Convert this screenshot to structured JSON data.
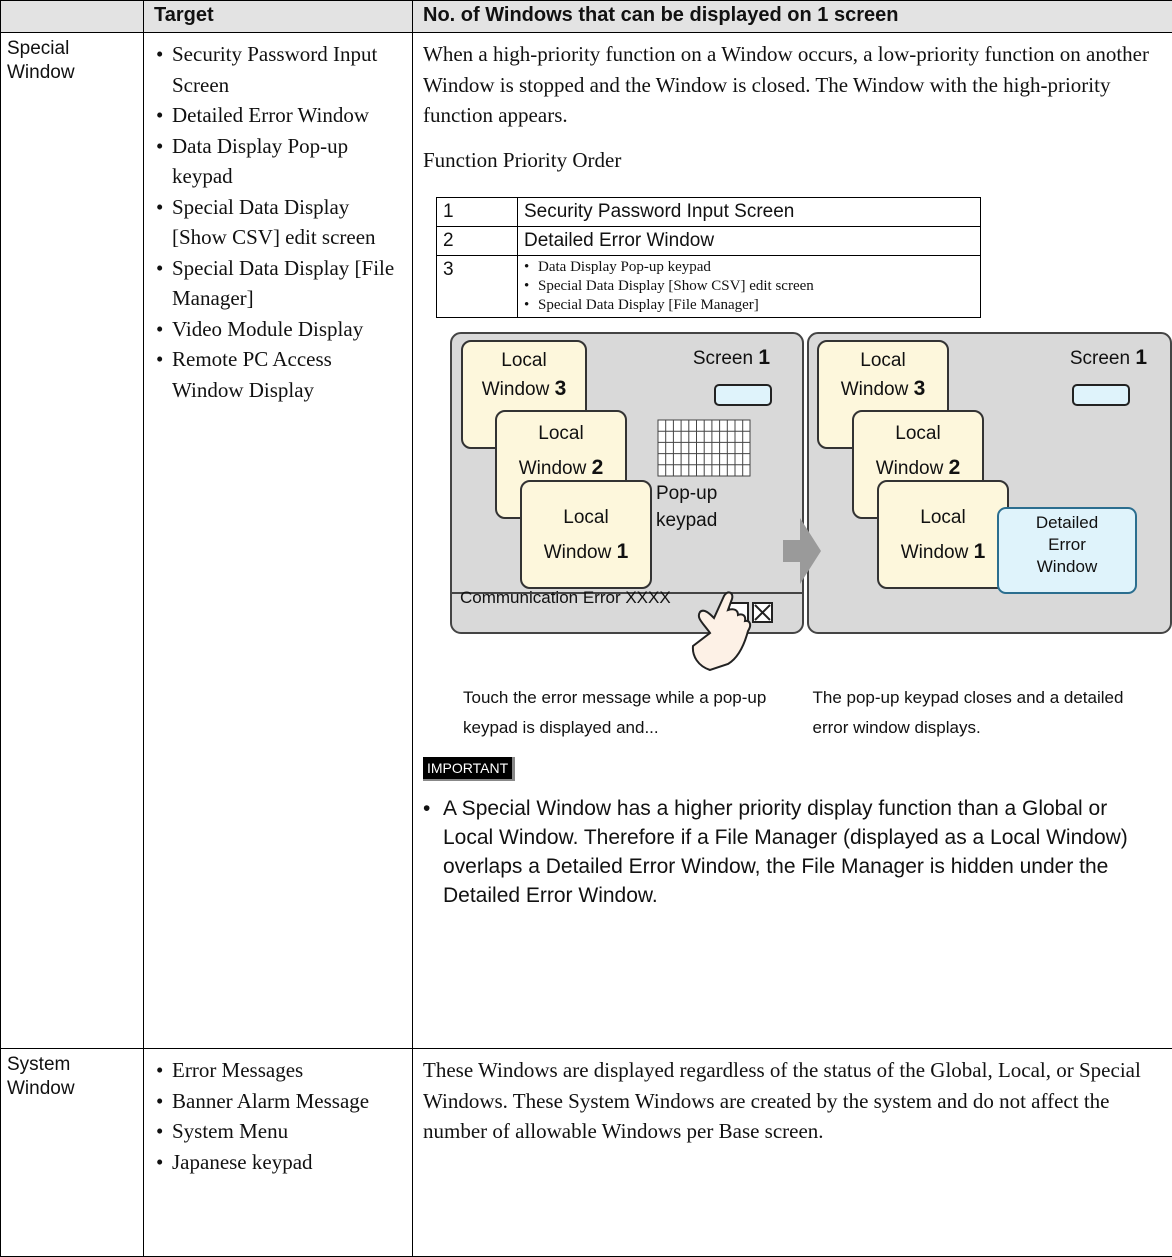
{
  "header": {
    "target": "Target",
    "description": "No. of Windows that can be displayed on 1 screen"
  },
  "rows": [
    {
      "category": "Special Window",
      "targets": [
        "Security Password Input Screen",
        "Detailed Error Window",
        "Data Display Pop-up keypad",
        "Special Data Display [Show CSV] edit screen",
        "Special Data Display [File Manager]",
        "Video Module Display",
        "Remote PC Access Window Display"
      ],
      "paragraphs": [
        "When a high-priority function on a Window occurs, a low-priority function on another Window is stopped and the Window is closed. The Window with the high-priority function appears.",
        "Function Priority Order"
      ],
      "priority_table": [
        {
          "rank": 1,
          "items": [
            "Security Password Input Screen"
          ]
        },
        {
          "rank": 2,
          "items": [
            "Detailed Error Window"
          ]
        },
        {
          "rank": 3,
          "items": [
            "Data Display Pop-up keypad",
            "Special Data Display [Show CSV] edit screen",
            "Special Data Display [File Manager]"
          ]
        }
      ],
      "diagram": {
        "before": {
          "screen_label": "Screen",
          "screen_number": "1",
          "windows": [
            {
              "label": "Local Window",
              "number": "3"
            },
            {
              "label": "Local Window",
              "number": "2"
            },
            {
              "label": "Local Window",
              "number": "1"
            }
          ],
          "keypad_label": "Pop-up keypad",
          "error_message": "Communication Error XXXX",
          "caption": "Touch the error message while a pop-up keypad is displayed and..."
        },
        "after": {
          "screen_label": "Screen",
          "screen_number": "1",
          "windows": [
            {
              "label": "Local Window",
              "number": "3"
            },
            {
              "label": "Local Window",
              "number": "2"
            },
            {
              "label": "Local Window",
              "number": "1"
            }
          ],
          "error_window": "Detailed Error Window",
          "caption": "The pop-up keypad closes and a detailed error window displays."
        }
      },
      "important_label": "IMPORTANT",
      "important_note": "A Special Window has a higher priority display function than a Global or Local Window. Therefore if a File Manager (displayed as a Local Window) overlaps a Detailed Error Window, the File Manager is hidden under the Detailed Error Window."
    },
    {
      "category": "System Window",
      "targets": [
        "Error Messages",
        "Banner Alarm Message",
        "System Menu",
        "Japanese keypad"
      ],
      "paragraphs": [
        "These Windows are displayed regardless of the status of the Global, Local, or Special Windows. These System Windows are created by the system and do not affect the number of allowable Windows per Base screen."
      ]
    }
  ]
}
